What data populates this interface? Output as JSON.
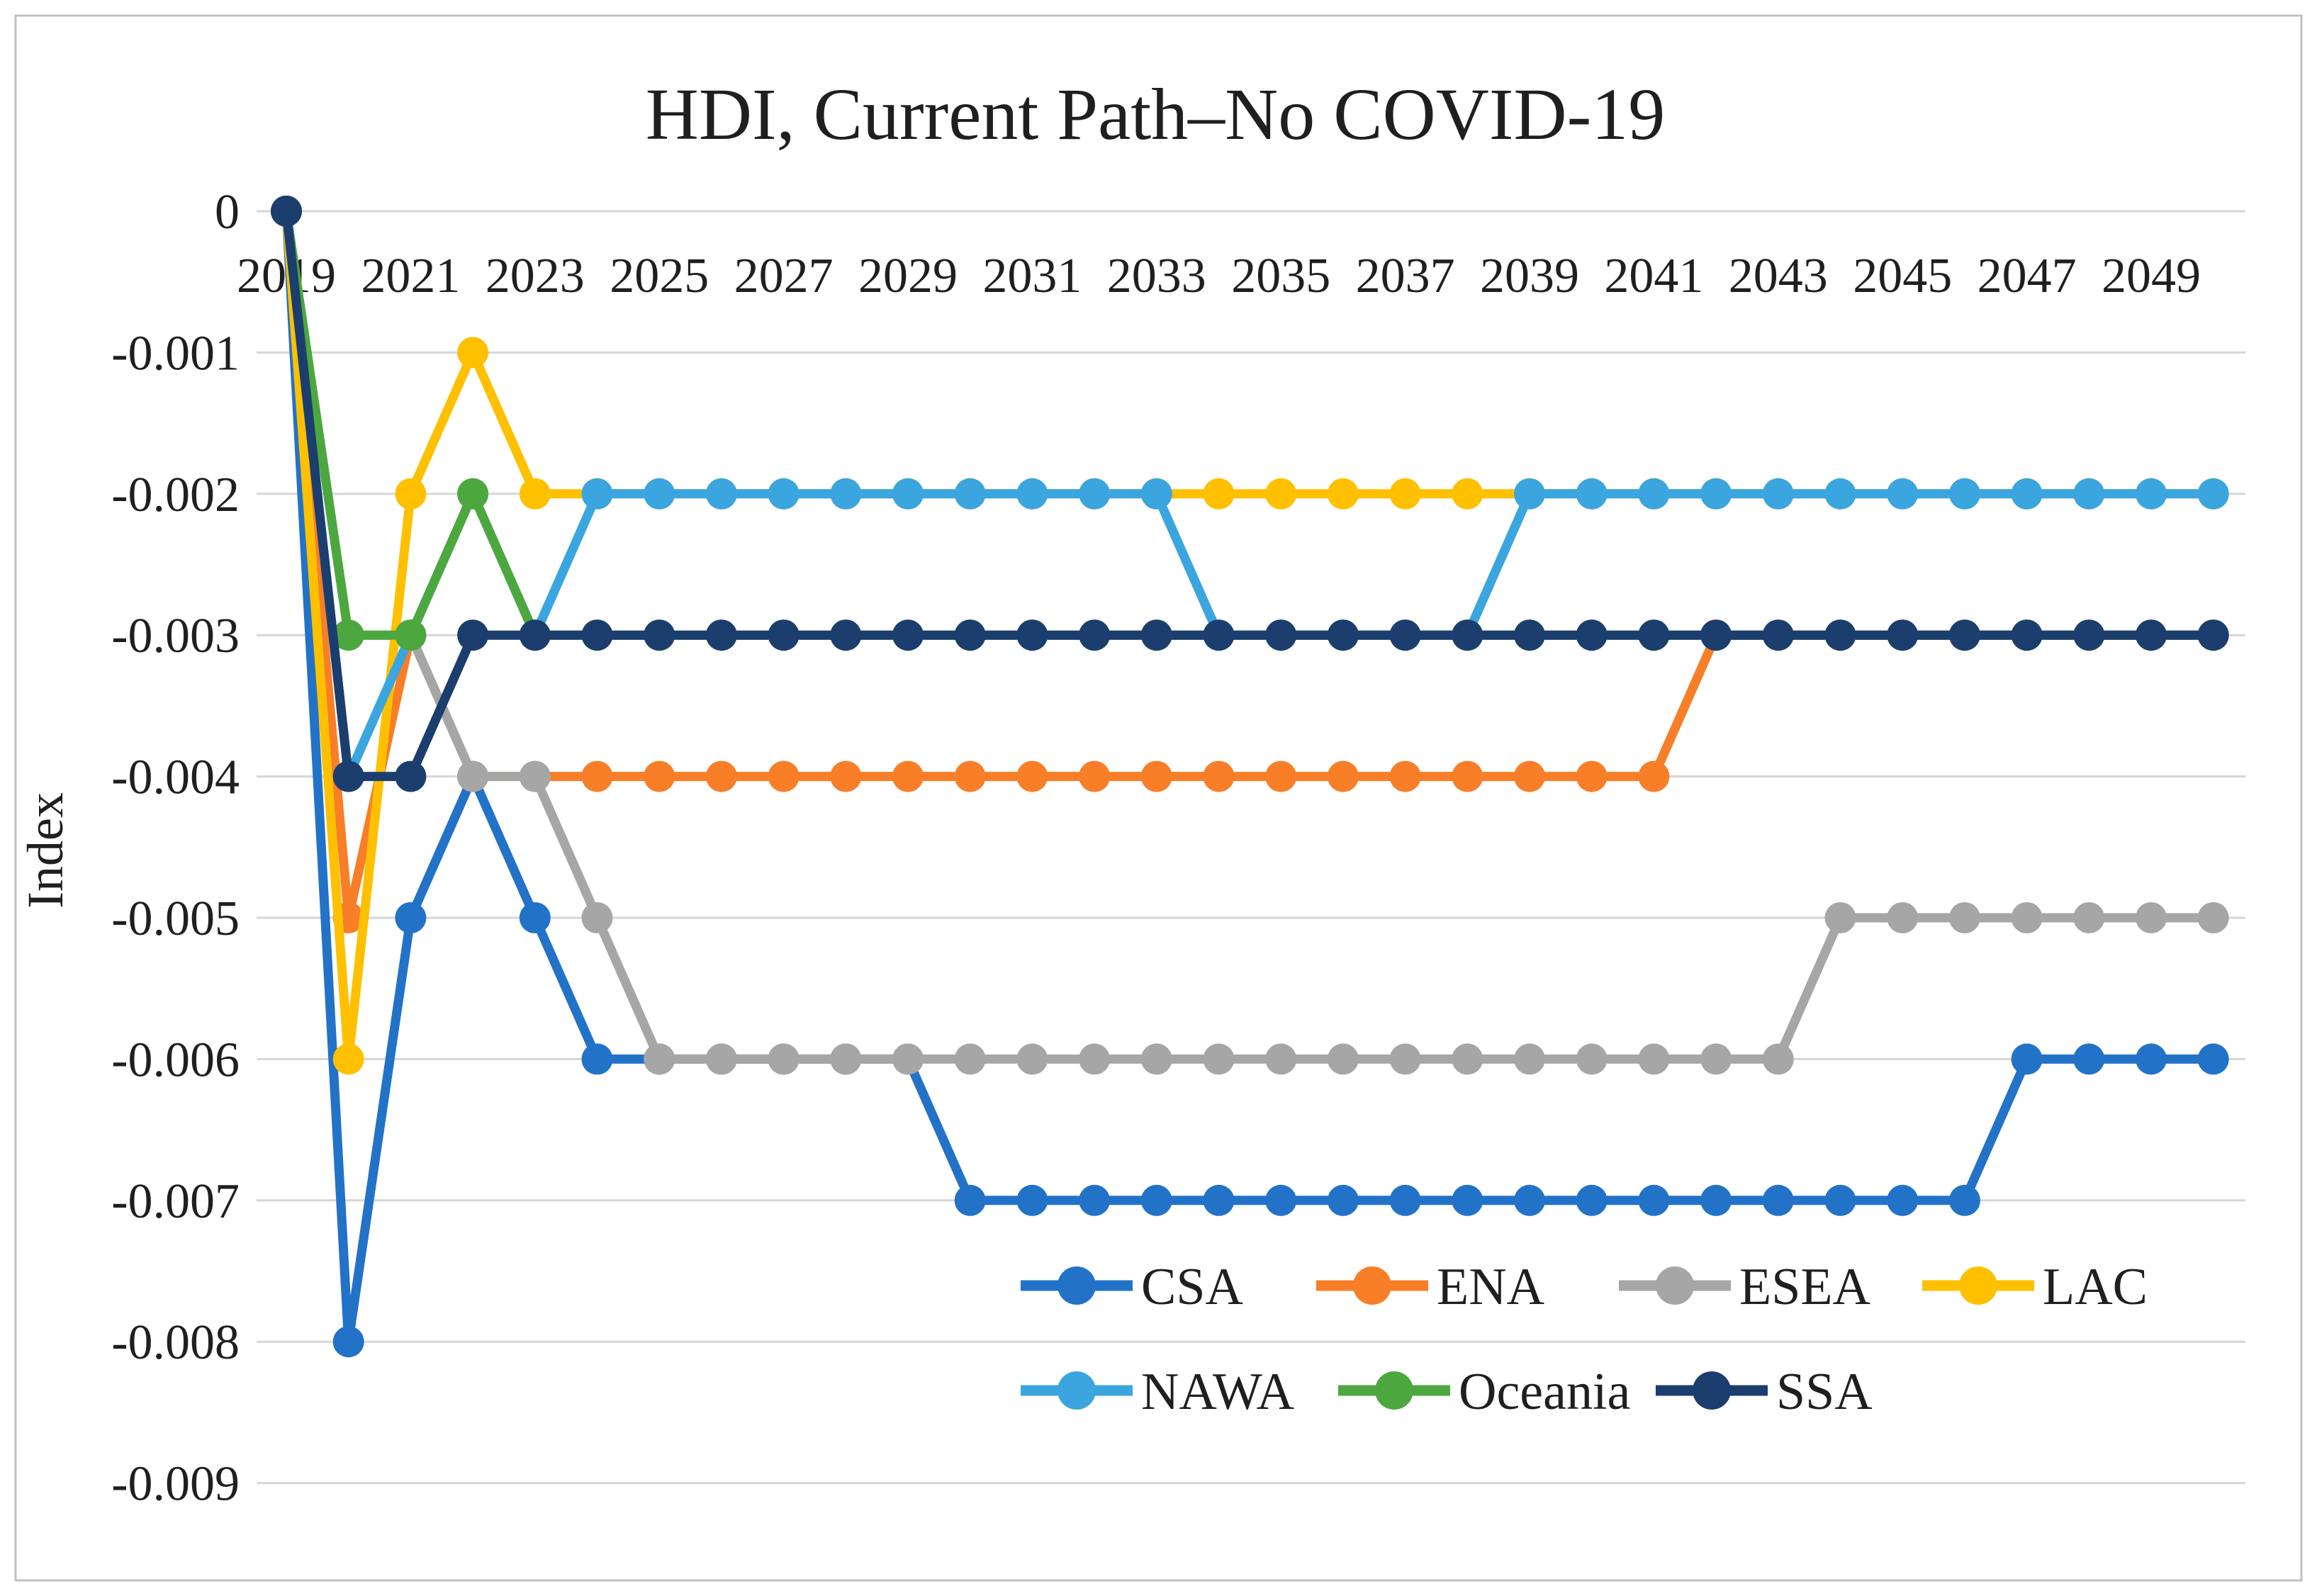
{
  "title": "HDI, Current Path–No COVID-19",
  "y_axis": {
    "label": "Index",
    "tick_labels": [
      "0",
      "-0.001",
      "-0.002",
      "-0.003",
      "-0.004",
      "-0.005",
      "-0.006",
      "-0.007",
      "-0.008",
      "-0.009"
    ],
    "tick_values": [
      0,
      -0.001,
      -0.002,
      -0.003,
      -0.004,
      -0.005,
      -0.006,
      -0.007,
      -0.008,
      -0.009
    ]
  },
  "x_axis": {
    "tick_labels": [
      "2019",
      "2021",
      "2023",
      "2025",
      "2027",
      "2029",
      "2031",
      "2033",
      "2035",
      "2037",
      "2039",
      "2041",
      "2043",
      "2045",
      "2047",
      "2049"
    ]
  },
  "colors": {
    "gridline": "#D6D6D6",
    "frame_border": "#C0C0C0",
    "text": "#1F1F1F"
  },
  "legend": {
    "rows": [
      [
        "CSA",
        "ENA",
        "ESEA",
        "LAC"
      ],
      [
        "NAWA",
        "Oceania",
        "SSA"
      ]
    ]
  },
  "chart_data": {
    "type": "line",
    "title": "HDI, Current Path–No COVID-19",
    "xlabel": "",
    "ylabel": "Index",
    "ylim": [
      -0.009,
      0
    ],
    "grid": true,
    "legend_position": "bottom-center-inside",
    "x": [
      2019,
      2020,
      2021,
      2022,
      2023,
      2024,
      2025,
      2026,
      2027,
      2028,
      2029,
      2030,
      2031,
      2032,
      2033,
      2034,
      2035,
      2036,
      2037,
      2038,
      2039,
      2040,
      2041,
      2042,
      2043,
      2044,
      2045,
      2046,
      2047,
      2048,
      2049,
      2050
    ],
    "series": [
      {
        "name": "CSA",
        "color": "#2272C8",
        "values": [
          0,
          -0.008,
          -0.005,
          -0.004,
          -0.005,
          -0.006,
          -0.006,
          -0.006,
          -0.006,
          -0.006,
          -0.006,
          -0.007,
          -0.007,
          -0.007,
          -0.007,
          -0.007,
          -0.007,
          -0.007,
          -0.007,
          -0.007,
          -0.007,
          -0.007,
          -0.007,
          -0.007,
          -0.007,
          -0.007,
          -0.007,
          -0.007,
          -0.006,
          -0.006,
          -0.006,
          -0.006
        ]
      },
      {
        "name": "ENA",
        "color": "#F87E28",
        "values": [
          0,
          -0.005,
          -0.003,
          -0.004,
          -0.004,
          -0.004,
          -0.004,
          -0.004,
          -0.004,
          -0.004,
          -0.004,
          -0.004,
          -0.004,
          -0.004,
          -0.004,
          -0.004,
          -0.004,
          -0.004,
          -0.004,
          -0.004,
          -0.004,
          -0.004,
          -0.004,
          -0.003,
          -0.003,
          -0.003,
          -0.003,
          -0.003,
          -0.003,
          -0.003,
          -0.003,
          -0.003
        ]
      },
      {
        "name": "ESEA",
        "color": "#A6A6A6",
        "values": [
          0,
          -0.003,
          -0.003,
          -0.004,
          -0.004,
          -0.005,
          -0.006,
          -0.006,
          -0.006,
          -0.006,
          -0.006,
          -0.006,
          -0.006,
          -0.006,
          -0.006,
          -0.006,
          -0.006,
          -0.006,
          -0.006,
          -0.006,
          -0.006,
          -0.006,
          -0.006,
          -0.006,
          -0.006,
          -0.005,
          -0.005,
          -0.005,
          -0.005,
          -0.005,
          -0.005,
          -0.005
        ]
      },
      {
        "name": "LAC",
        "color": "#FFC000",
        "values": [
          0,
          -0.006,
          -0.002,
          -0.001,
          -0.002,
          -0.002,
          -0.002,
          -0.002,
          -0.002,
          -0.002,
          -0.002,
          -0.002,
          -0.002,
          -0.002,
          -0.002,
          -0.002,
          -0.002,
          -0.002,
          -0.002,
          -0.002,
          -0.002,
          -0.002,
          -0.002,
          -0.002,
          -0.002,
          -0.002,
          -0.002,
          -0.002,
          -0.002,
          -0.002,
          -0.002,
          -0.002
        ]
      },
      {
        "name": "NAWA",
        "color": "#3AA5DE",
        "values": [
          0,
          -0.004,
          -0.003,
          -0.002,
          -0.003,
          -0.002,
          -0.002,
          -0.002,
          -0.002,
          -0.002,
          -0.002,
          -0.002,
          -0.002,
          -0.002,
          -0.002,
          -0.003,
          -0.003,
          -0.003,
          -0.003,
          -0.003,
          -0.002,
          -0.002,
          -0.002,
          -0.002,
          -0.002,
          -0.002,
          -0.002,
          -0.002,
          -0.002,
          -0.002,
          -0.002,
          -0.002
        ]
      },
      {
        "name": "Oceania",
        "color": "#4CA83E",
        "values": [
          0,
          -0.003,
          -0.003,
          -0.002,
          -0.003,
          -0.003,
          -0.003,
          -0.003,
          -0.003,
          -0.003,
          -0.003,
          -0.003,
          -0.003,
          -0.003,
          -0.003,
          -0.003,
          -0.003,
          -0.003,
          -0.003,
          -0.003,
          -0.003,
          -0.003,
          -0.003,
          -0.003,
          -0.003,
          -0.003,
          -0.003,
          -0.003,
          -0.003,
          -0.003,
          -0.003,
          -0.003
        ]
      },
      {
        "name": "SSA",
        "color": "#1C3E6E",
        "values": [
          0,
          -0.004,
          -0.004,
          -0.003,
          -0.003,
          -0.003,
          -0.003,
          -0.003,
          -0.003,
          -0.003,
          -0.003,
          -0.003,
          -0.003,
          -0.003,
          -0.003,
          -0.003,
          -0.003,
          -0.003,
          -0.003,
          -0.003,
          -0.003,
          -0.003,
          -0.003,
          -0.003,
          -0.003,
          -0.003,
          -0.003,
          -0.003,
          -0.003,
          -0.003,
          -0.003,
          -0.003
        ]
      }
    ]
  }
}
